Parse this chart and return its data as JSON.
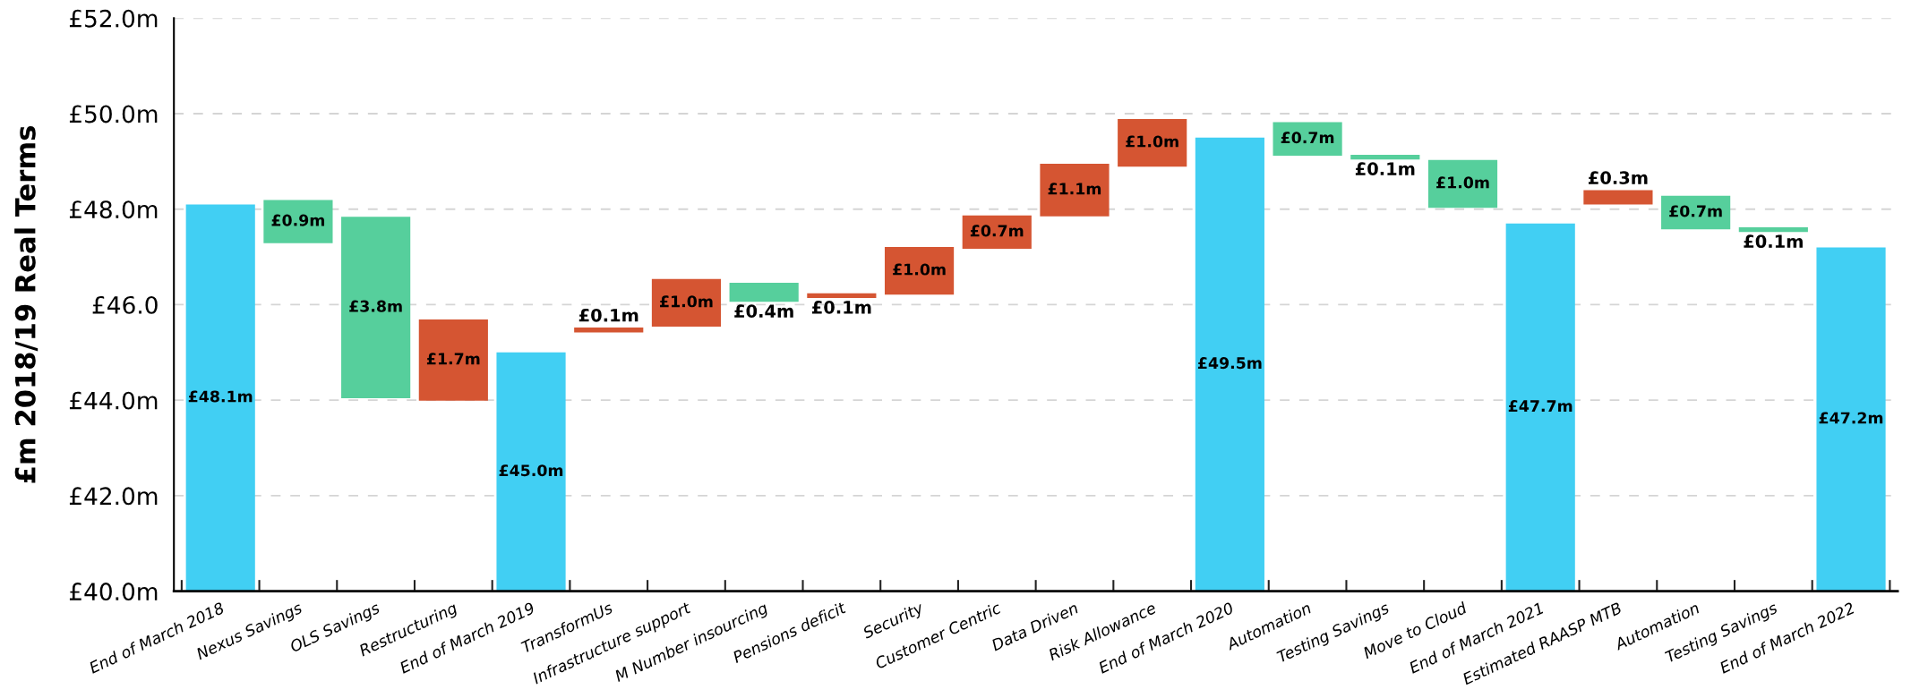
{
  "chart_data": {
    "type": "bar",
    "ylabel": "£m 2018/19 Real Terms",
    "categories": [
      "End of March 2018",
      "Nexus Savings",
      "OLS Savings",
      "Restructuring",
      "End of March 2019",
      "TransformUs",
      "Infrastructure support",
      "M Number insourcing",
      "Pensions deficit",
      "Security",
      "Customer Centric",
      "Data Driven",
      "Risk Allowance",
      "End of March 2020",
      "Automation",
      "Testing Savings",
      "Move to Cloud",
      "End of March 2021",
      "Estimated RAASP MTB",
      "Automation",
      "Testing Savings",
      "End of March 2022"
    ],
    "values": [
      48.1,
      0.9,
      3.8,
      1.7,
      45.0,
      0.1,
      1.0,
      0.4,
      0.1,
      1.0,
      0.7,
      1.1,
      1.0,
      49.5,
      0.7,
      0.1,
      1.0,
      47.7,
      0.3,
      0.7,
      0.1,
      47.2
    ],
    "base": [
      null,
      47.29,
      44.04,
      43.99,
      null,
      45.42,
      45.54,
      46.06,
      46.14,
      46.21,
      47.17,
      47.85,
      48.89,
      null,
      49.12,
      49.04,
      48.03,
      null,
      48.1,
      47.58,
      47.52,
      null
    ],
    "colors": [
      "#41cff3",
      "#56cf9c",
      "#56cf9c",
      "#d55532",
      "#41cff3",
      "#d55532",
      "#d55532",
      "#56cf9c",
      "#d55532",
      "#d55532",
      "#d55532",
      "#d55532",
      "#d55532",
      "#41cff3",
      "#56cf9c",
      "#56cf9c",
      "#56cf9c",
      "#41cff3",
      "#d55532",
      "#56cf9c",
      "#56cf9c",
      "#41cff3"
    ],
    "value_labels": [
      "£48.1m",
      "£0.9m",
      "£3.8m",
      "£1.7m",
      "£45.0m",
      "£0.1m",
      "£1.0m",
      "£0.4m",
      "£0.1m",
      "£1.0m",
      "£0.7m",
      "£1.1m",
      "£1.0m",
      "£49.5m",
      "£0.7m",
      "£0.1m",
      "£1.0m",
      "£47.7m",
      "£0.3m",
      "£0.7m",
      "£0.1m",
      "£47.2m"
    ],
    "ylim": [
      40,
      52
    ],
    "yticks": [
      {
        "value": 40,
        "label": "£40.0m"
      },
      {
        "value": 42,
        "label": "£42.0m"
      },
      {
        "value": 44,
        "label": "£44.0m"
      },
      {
        "value": 46,
        "label": "£46.0"
      },
      {
        "value": 48,
        "label": "£48.0m"
      },
      {
        "value": 50,
        "label": "£50.0m"
      },
      {
        "value": 52,
        "label": "£52.0m"
      }
    ],
    "grid": "y"
  }
}
